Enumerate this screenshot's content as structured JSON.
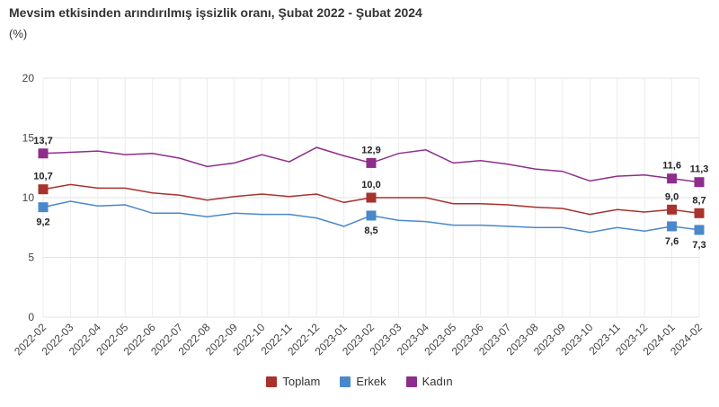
{
  "title": "Mevsim etkisinden arındırılmış işsizlik oranı, Şubat 2022 - Şubat 2024",
  "unit": "(%)",
  "chart_data": {
    "type": "line",
    "title": "Mevsim etkisinden arındırılmış işsizlik oranı, Şubat 2022 - Şubat 2024",
    "ylabel": "(%)",
    "xlabel": "",
    "ylim": [
      0,
      20
    ],
    "yticks": [
      "0",
      "5",
      "10",
      "15",
      "20"
    ],
    "grid": true,
    "legend": "bottom",
    "x": [
      "2022-02",
      "2022-03",
      "2022-04",
      "2022-05",
      "2022-06",
      "2022-07",
      "2022-08",
      "2022-09",
      "2022-10",
      "2022-11",
      "2022-12",
      "2023-01",
      "2023-02",
      "2023-03",
      "2023-04",
      "2023-05",
      "2023-06",
      "2023-07",
      "2023-08",
      "2023-09",
      "2023-10",
      "2023-11",
      "2023-12",
      "2024-01",
      "2024-02"
    ],
    "series": [
      {
        "name": "Toplam",
        "color": "#A8322D",
        "values": [
          10.7,
          11.1,
          10.8,
          10.8,
          10.4,
          10.2,
          9.8,
          10.1,
          10.3,
          10.1,
          10.3,
          9.6,
          10.0,
          10.0,
          10.0,
          9.5,
          9.5,
          9.4,
          9.2,
          9.1,
          8.6,
          9.0,
          8.8,
          9.0,
          8.7
        ],
        "markers": [
          {
            "i": 0,
            "label": "10,7"
          },
          {
            "i": 12,
            "label": "10,0"
          },
          {
            "i": 23,
            "label": "9,0"
          },
          {
            "i": 24,
            "label": "8,7"
          }
        ]
      },
      {
        "name": "Erkek",
        "color": "#4A88CC",
        "values": [
          9.2,
          9.7,
          9.3,
          9.4,
          8.7,
          8.7,
          8.4,
          8.7,
          8.6,
          8.6,
          8.3,
          7.6,
          8.5,
          8.1,
          8.0,
          7.7,
          7.7,
          7.6,
          7.5,
          7.5,
          7.1,
          7.5,
          7.2,
          7.6,
          7.3
        ],
        "markers": [
          {
            "i": 0,
            "label": "9,2"
          },
          {
            "i": 12,
            "label": "8,5"
          },
          {
            "i": 23,
            "label": "7,6"
          },
          {
            "i": 24,
            "label": "7,3"
          }
        ]
      },
      {
        "name": "Kadın",
        "color": "#8E2D8C",
        "values": [
          13.7,
          13.8,
          13.9,
          13.6,
          13.7,
          13.3,
          12.6,
          12.9,
          13.6,
          13.0,
          14.2,
          13.5,
          12.9,
          13.7,
          14.0,
          12.9,
          13.1,
          12.8,
          12.4,
          12.2,
          11.4,
          11.8,
          11.9,
          11.6,
          11.3
        ],
        "markers": [
          {
            "i": 0,
            "label": "13,7"
          },
          {
            "i": 12,
            "label": "12,9"
          },
          {
            "i": 23,
            "label": "11,6"
          },
          {
            "i": 24,
            "label": "11,3"
          }
        ]
      }
    ]
  }
}
